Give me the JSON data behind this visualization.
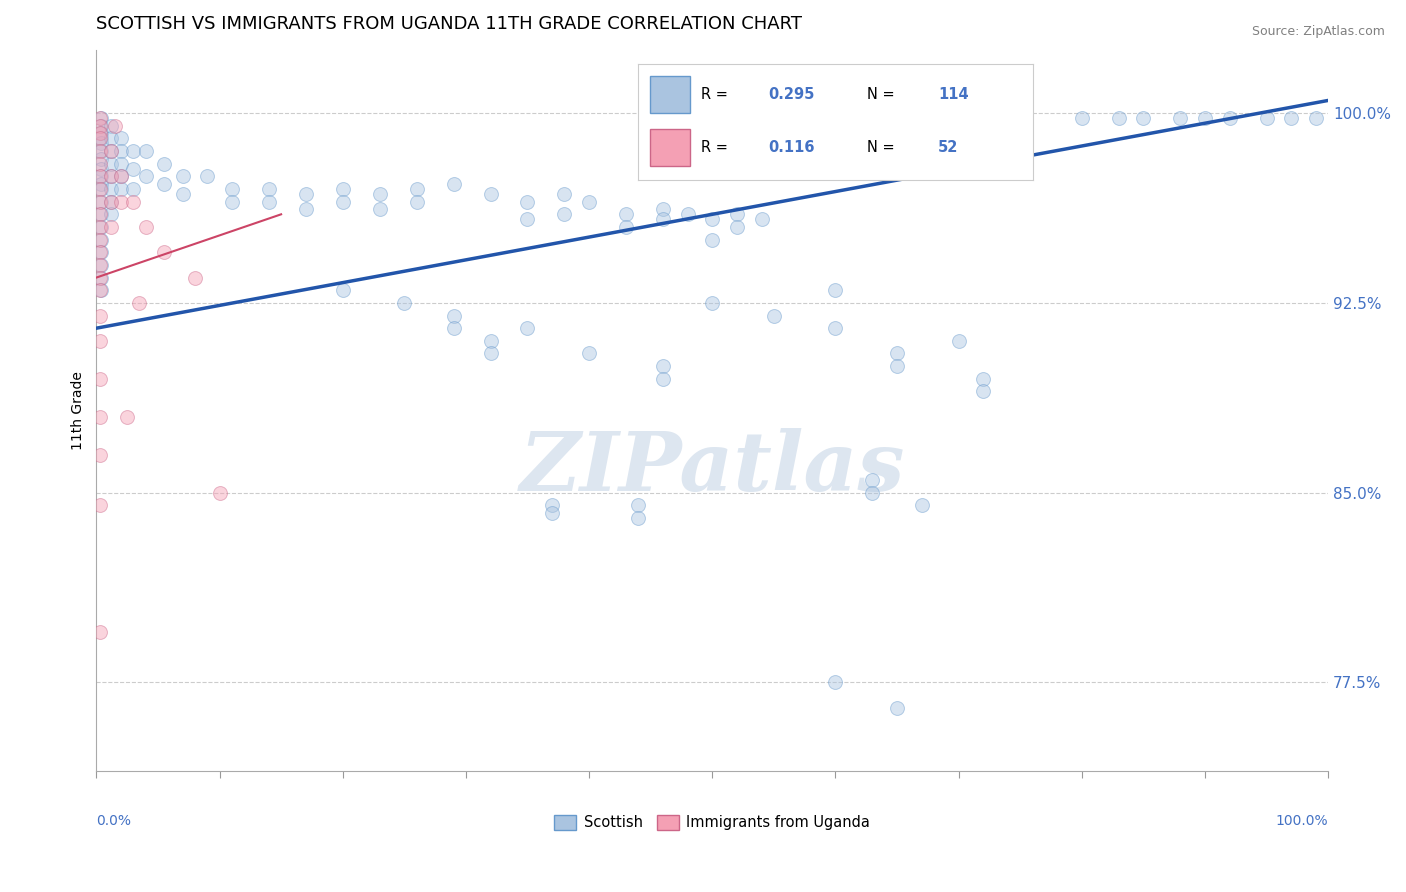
{
  "title": "SCOTTISH VS IMMIGRANTS FROM UGANDA 11TH GRADE CORRELATION CHART",
  "source": "Source: ZipAtlas.com",
  "ylabel": "11th Grade",
  "xlim": [
    0.0,
    100.0
  ],
  "ylim": [
    74.0,
    102.5
  ],
  "y_ticks": [
    77.5,
    85.0,
    92.5,
    100.0
  ],
  "y_tick_labels": [
    "77.5%",
    "85.0%",
    "92.5%",
    "100.0%"
  ],
  "watermark": "ZIPatlas",
  "blue_scatter": [
    [
      0.4,
      99.8
    ],
    [
      0.4,
      99.5
    ],
    [
      0.4,
      99.2
    ],
    [
      0.4,
      99.0
    ],
    [
      0.4,
      98.8
    ],
    [
      0.4,
      98.5
    ],
    [
      0.4,
      98.2
    ],
    [
      0.4,
      97.8
    ],
    [
      0.4,
      97.5
    ],
    [
      0.4,
      97.2
    ],
    [
      0.4,
      97.0
    ],
    [
      0.4,
      96.5
    ],
    [
      0.4,
      96.0
    ],
    [
      0.4,
      95.5
    ],
    [
      0.4,
      95.0
    ],
    [
      0.4,
      94.5
    ],
    [
      0.4,
      94.0
    ],
    [
      0.4,
      93.5
    ],
    [
      0.4,
      93.0
    ],
    [
      1.2,
      99.5
    ],
    [
      1.2,
      99.0
    ],
    [
      1.2,
      98.5
    ],
    [
      1.2,
      98.0
    ],
    [
      1.2,
      97.5
    ],
    [
      1.2,
      97.0
    ],
    [
      1.2,
      96.5
    ],
    [
      1.2,
      96.0
    ],
    [
      2.0,
      99.0
    ],
    [
      2.0,
      98.5
    ],
    [
      2.0,
      98.0
    ],
    [
      2.0,
      97.5
    ],
    [
      2.0,
      97.0
    ],
    [
      3.0,
      98.5
    ],
    [
      3.0,
      97.8
    ],
    [
      3.0,
      97.0
    ],
    [
      4.0,
      98.5
    ],
    [
      4.0,
      97.5
    ],
    [
      5.5,
      98.0
    ],
    [
      5.5,
      97.2
    ],
    [
      7.0,
      97.5
    ],
    [
      7.0,
      96.8
    ],
    [
      9.0,
      97.5
    ],
    [
      11.0,
      97.0
    ],
    [
      11.0,
      96.5
    ],
    [
      14.0,
      97.0
    ],
    [
      14.0,
      96.5
    ],
    [
      17.0,
      96.8
    ],
    [
      17.0,
      96.2
    ],
    [
      20.0,
      97.0
    ],
    [
      20.0,
      96.5
    ],
    [
      23.0,
      96.8
    ],
    [
      23.0,
      96.2
    ],
    [
      26.0,
      97.0
    ],
    [
      26.0,
      96.5
    ],
    [
      29.0,
      97.2
    ],
    [
      32.0,
      96.8
    ],
    [
      35.0,
      96.5
    ],
    [
      35.0,
      95.8
    ],
    [
      38.0,
      96.8
    ],
    [
      38.0,
      96.0
    ],
    [
      40.0,
      96.5
    ],
    [
      43.0,
      96.0
    ],
    [
      43.0,
      95.5
    ],
    [
      46.0,
      96.2
    ],
    [
      46.0,
      95.8
    ],
    [
      48.0,
      96.0
    ],
    [
      50.0,
      95.8
    ],
    [
      50.0,
      95.0
    ],
    [
      52.0,
      96.0
    ],
    [
      52.0,
      95.5
    ],
    [
      54.0,
      95.8
    ],
    [
      37.0,
      84.5
    ],
    [
      37.0,
      84.2
    ],
    [
      44.0,
      84.5
    ],
    [
      44.0,
      84.0
    ],
    [
      20.0,
      93.0
    ],
    [
      25.0,
      92.5
    ],
    [
      29.0,
      92.0
    ],
    [
      29.0,
      91.5
    ],
    [
      32.0,
      91.0
    ],
    [
      32.0,
      90.5
    ],
    [
      35.0,
      91.5
    ],
    [
      40.0,
      90.5
    ],
    [
      46.0,
      90.0
    ],
    [
      46.0,
      89.5
    ],
    [
      50.0,
      92.5
    ],
    [
      55.0,
      92.0
    ],
    [
      60.0,
      93.0
    ],
    [
      60.0,
      91.5
    ],
    [
      65.0,
      90.5
    ],
    [
      65.0,
      90.0
    ],
    [
      70.0,
      91.0
    ],
    [
      72.0,
      89.5
    ],
    [
      72.0,
      89.0
    ],
    [
      63.0,
      85.5
    ],
    [
      63.0,
      85.0
    ],
    [
      67.0,
      84.5
    ],
    [
      60.0,
      77.5
    ],
    [
      65.0,
      76.5
    ],
    [
      80.0,
      99.8
    ],
    [
      83.0,
      99.8
    ],
    [
      85.0,
      99.8
    ],
    [
      88.0,
      99.8
    ],
    [
      90.0,
      99.8
    ],
    [
      92.0,
      99.8
    ],
    [
      95.0,
      99.8
    ],
    [
      97.0,
      99.8
    ],
    [
      99.0,
      99.8
    ]
  ],
  "pink_scatter": [
    [
      0.3,
      99.8
    ],
    [
      0.3,
      99.5
    ],
    [
      0.3,
      99.2
    ],
    [
      0.3,
      99.0
    ],
    [
      0.3,
      98.5
    ],
    [
      0.3,
      98.0
    ],
    [
      0.3,
      97.5
    ],
    [
      0.3,
      97.0
    ],
    [
      0.3,
      96.5
    ],
    [
      0.3,
      96.0
    ],
    [
      0.3,
      95.5
    ],
    [
      0.3,
      95.0
    ],
    [
      0.3,
      94.5
    ],
    [
      0.3,
      94.0
    ],
    [
      0.3,
      93.5
    ],
    [
      0.3,
      93.0
    ],
    [
      0.3,
      92.0
    ],
    [
      0.3,
      91.0
    ],
    [
      0.3,
      89.5
    ],
    [
      0.3,
      88.0
    ],
    [
      0.3,
      86.5
    ],
    [
      0.3,
      84.5
    ],
    [
      1.2,
      98.5
    ],
    [
      1.2,
      97.5
    ],
    [
      1.2,
      96.5
    ],
    [
      1.2,
      95.5
    ],
    [
      2.0,
      97.5
    ],
    [
      2.0,
      96.5
    ],
    [
      3.0,
      96.5
    ],
    [
      4.0,
      95.5
    ],
    [
      5.5,
      94.5
    ],
    [
      1.5,
      99.5
    ],
    [
      8.0,
      93.5
    ],
    [
      10.0,
      85.0
    ],
    [
      3.5,
      92.5
    ],
    [
      0.3,
      79.5
    ],
    [
      2.5,
      88.0
    ]
  ],
  "blue_line": {
    "x0": 0,
    "x1": 100,
    "y0": 91.5,
    "y1": 100.5
  },
  "pink_line": {
    "x0": 0,
    "x1": 15,
    "y0": 93.5,
    "y1": 96.0
  },
  "scatter_size": 100,
  "scatter_alpha": 0.45,
  "blue_color": "#aac4e0",
  "blue_edge_color": "#6699cc",
  "pink_color": "#f4a0b4",
  "pink_edge_color": "#cc6688",
  "blue_line_color": "#2255aa",
  "pink_line_color": "#cc4466",
  "grid_color": "#cccccc",
  "title_fontsize": 13,
  "axis_label_fontsize": 10,
  "tick_label_color": "#4472c4",
  "watermark_color": "#dde6f0",
  "watermark_fontsize": 60,
  "legend_R_blue": "0.295",
  "legend_N_blue": "114",
  "legend_R_pink": "0.116",
  "legend_N_pink": "52"
}
